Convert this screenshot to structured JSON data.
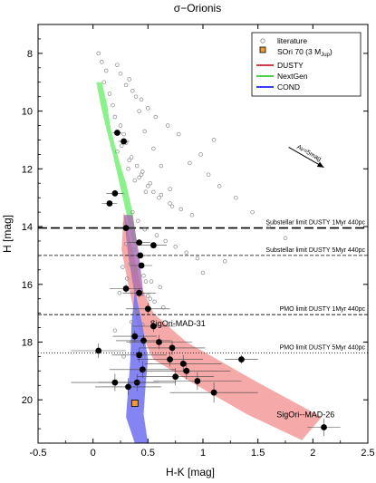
{
  "chart_data": {
    "type": "scatter",
    "title": "σ−Orionis",
    "xlabel": "H-K [mag]",
    "ylabel": "H [mag]",
    "xlim": [
      -0.5,
      2.5
    ],
    "ylim": [
      21.5,
      7.0
    ],
    "y_inverted": true,
    "xticks": [
      "-0.5",
      "0",
      "0.5",
      "1",
      "1.5",
      "2",
      "2.5"
    ],
    "yticks": [
      "8",
      "10",
      "12",
      "14",
      "16",
      "18",
      "20"
    ],
    "legend": {
      "placement": "top-right",
      "entries": [
        {
          "label": "literature",
          "marker": "open-circle"
        },
        {
          "label": "SOri 70 (3 M",
          "sub": "Jup",
          "suffix": ")",
          "marker": "orange-square"
        },
        {
          "label": "DUSTY",
          "marker": "line",
          "color": "#d63a4a"
        },
        {
          "label": "NextGen",
          "marker": "line",
          "color": "#4cd34c"
        },
        {
          "label": "COND",
          "marker": "line",
          "color": "#3a3aff"
        }
      ]
    },
    "colors": {
      "dusty": "#f49a9a",
      "nextgen": "#77ee77",
      "cond": "#7777f2",
      "overlap": "#a86ab0",
      "literature": "#8a8a8a",
      "sori70": "#f29b2e"
    },
    "reddening_vector": {
      "label": "Av=5mag",
      "from": [
        1.78,
        11.25
      ],
      "to": [
        2.1,
        11.95
      ]
    },
    "limit_lines": [
      {
        "label": "Substellar limit DUSTY 1Myr 440pc",
        "y": 14.05,
        "style": "long-dash"
      },
      {
        "label": "Substellar limit DUSTY 5Myr 440pc",
        "y": 15.0,
        "style": "dashed"
      },
      {
        "label": "PMO limit DUSTY 1Myr 440pc",
        "y": 17.05,
        "style": "dashed"
      },
      {
        "label": "PMO limit DUSTY 5Myr 440pc",
        "y": 18.38,
        "style": "dotted"
      }
    ],
    "labeled_objects": [
      {
        "label": "SigOri-MAD-31",
        "x": 0.52,
        "y": 17.9
      },
      {
        "label": "SigOri--MAD-26",
        "x": 2.1,
        "y": 20.9
      }
    ],
    "bands": [
      {
        "name": "NextGen",
        "x": [
          0.08,
          0.13,
          0.16,
          0.22,
          0.3,
          0.36,
          0.4,
          0.36,
          0.3,
          0.24,
          0.18,
          0.12,
          0.07,
          0.03
        ],
        "y": [
          9.0,
          9.8,
          10.6,
          11.5,
          12.5,
          13.5,
          14.6,
          14.6,
          13.5,
          12.5,
          11.5,
          10.6,
          9.8,
          9.0
        ]
      },
      {
        "name": "DUSTY",
        "x": [
          0.28,
          0.36,
          0.43,
          0.55,
          0.85,
          1.5,
          2.08,
          1.9,
          1.4,
          0.9,
          0.55,
          0.4,
          0.32,
          0.26
        ],
        "y": [
          13.5,
          14.8,
          16.0,
          17.0,
          18.0,
          19.4,
          20.6,
          21.4,
          20.5,
          19.4,
          18.6,
          17.4,
          16.0,
          14.8
        ]
      },
      {
        "name": "COND",
        "x": [
          0.38,
          0.45,
          0.5,
          0.48,
          0.46,
          0.5,
          0.38,
          0.3,
          0.32,
          0.34,
          0.35
        ],
        "y": [
          16.2,
          17.4,
          18.6,
          19.4,
          20.5,
          21.5,
          21.5,
          20.6,
          19.6,
          18.6,
          17.4
        ]
      }
    ],
    "series": [
      {
        "name": "literature",
        "x": [
          0.05,
          0.08,
          0.12,
          0.1,
          0.15,
          0.18,
          0.2,
          0.25,
          0.28,
          0.3,
          0.22,
          0.35,
          0.4,
          0.45,
          0.38,
          0.5,
          0.55,
          0.6,
          0.7,
          0.8,
          0.9,
          0.32,
          0.42,
          0.48,
          0.26,
          0.33,
          0.44,
          0.52,
          0.62,
          0.72,
          0.36,
          0.41,
          0.29,
          0.47,
          0.58,
          0.66,
          0.75,
          0.85,
          0.95,
          0.3,
          0.37,
          0.43,
          0.34,
          0.39,
          0.46,
          0.53,
          0.61,
          0.27,
          0.31,
          0.4,
          0.5,
          0.56,
          0.64,
          0.24,
          0.38,
          0.45,
          0.2,
          0.35,
          0.28,
          1.05,
          1.15,
          1.3,
          1.45,
          1.6,
          1.75,
          1.2,
          1.0,
          0.88,
          0.98,
          1.1,
          0.78,
          0.68,
          0.57,
          0.5,
          0.44,
          0.36,
          0.3,
          0.25,
          0.22,
          0.42,
          0.47,
          0.39,
          0.33,
          0.55,
          0.62,
          0.7,
          0.4,
          0.35,
          0.48,
          0.52
        ],
        "y": [
          8.0,
          8.3,
          8.6,
          9.0,
          9.4,
          9.8,
          10.2,
          10.5,
          10.8,
          11.1,
          11.4,
          11.6,
          11.9,
          12.1,
          12.4,
          12.6,
          12.8,
          13.0,
          13.2,
          13.4,
          13.6,
          12.0,
          12.3,
          12.8,
          11.2,
          11.7,
          12.2,
          12.5,
          12.9,
          13.3,
          13.5,
          13.8,
          13.9,
          14.1,
          14.3,
          14.5,
          14.7,
          14.9,
          15.1,
          14.6,
          14.8,
          15.0,
          15.3,
          15.5,
          15.7,
          15.9,
          16.1,
          15.4,
          15.8,
          16.2,
          16.4,
          16.6,
          16.8,
          16.3,
          17.0,
          17.4,
          17.6,
          18.0,
          18.5,
          12.2,
          12.6,
          13.0,
          13.5,
          14.0,
          14.4,
          15.2,
          15.6,
          11.8,
          11.5,
          11.0,
          10.8,
          10.5,
          10.2,
          9.9,
          9.6,
          9.3,
          9.1,
          8.7,
          8.4,
          10.0,
          10.7,
          9.5,
          8.9,
          11.3,
          11.9,
          12.7,
          16.9,
          17.3,
          15.9,
          16.5
        ]
      },
      {
        "name": "new_detections",
        "x": [
          0.22,
          0.28,
          0.2,
          0.15,
          0.3,
          0.42,
          0.55,
          0.43,
          0.44,
          0.3,
          0.42,
          0.5,
          0.55,
          0.38,
          0.46,
          0.6,
          0.72,
          0.7,
          0.82,
          0.05,
          0.42,
          0.45,
          0.75,
          0.85,
          0.95,
          1.35,
          1.1,
          0.32,
          0.4,
          0.2,
          2.1
        ],
        "y": [
          10.75,
          11.05,
          12.85,
          13.2,
          14.05,
          14.55,
          14.65,
          15.0,
          15.35,
          16.15,
          16.3,
          16.85,
          17.45,
          17.8,
          17.95,
          18.0,
          18.2,
          18.6,
          18.75,
          18.3,
          18.45,
          18.95,
          19.2,
          19.0,
          19.35,
          18.6,
          19.75,
          19.55,
          19.4,
          19.4,
          20.95
        ],
        "xerr": [
          0.04,
          0.05,
          0.08,
          0.07,
          0.08,
          0.1,
          0.12,
          0.1,
          0.1,
          0.15,
          0.15,
          0.2,
          0.2,
          0.2,
          0.25,
          0.3,
          0.3,
          0.3,
          0.35,
          0.25,
          0.25,
          0.3,
          0.35,
          0.4,
          0.4,
          0.15,
          0.4,
          0.3,
          0.35,
          0.4,
          0.15
        ],
        "yerr": [
          0.05,
          0.05,
          0.1,
          0.1,
          0.1,
          0.1,
          0.1,
          0.1,
          0.1,
          0.15,
          0.15,
          0.2,
          0.2,
          0.2,
          0.2,
          0.25,
          0.25,
          0.25,
          0.3,
          0.25,
          0.25,
          0.3,
          0.3,
          0.3,
          0.3,
          0.15,
          0.35,
          0.3,
          0.3,
          0.3,
          0.3
        ]
      },
      {
        "name": "SOri 70",
        "x": [
          0.38
        ],
        "y": [
          20.12
        ]
      }
    ]
  }
}
